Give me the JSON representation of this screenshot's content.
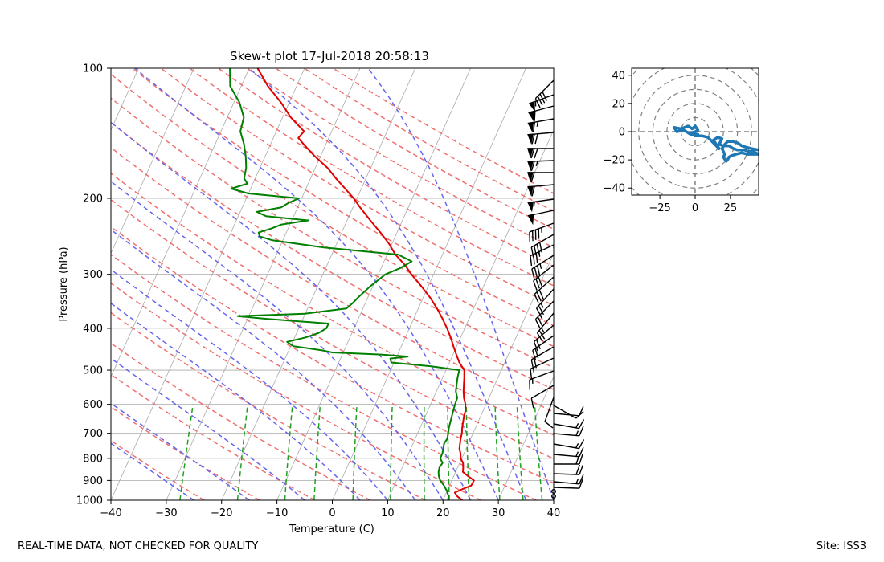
{
  "footer": {
    "left": "REAL-TIME DATA, NOT CHECKED FOR QUALITY",
    "right": "Site: ISS3"
  },
  "colors": {
    "temperature": "#e00000",
    "dewpoint": "#008000",
    "dry_adiabat": "#f07070",
    "moist_adiabat": "#6666ee",
    "mixing_ratio": "#22a022",
    "isotherm": "#aaaaaa",
    "hodograph": "#1f77b4"
  },
  "chart_data": [
    {
      "type": "line",
      "subtype": "skew-t",
      "title": "Skew-t plot 17-Jul-2018 20:58:13",
      "xlabel": "Temperature (C)",
      "ylabel": "Pressure (hPa)",
      "xlim": [
        -40,
        40
      ],
      "ylim": [
        1000,
        100
      ],
      "yscale": "log",
      "x_ticks": [
        "−40",
        "−30",
        "−20",
        "−10",
        "0",
        "10",
        "20",
        "30",
        "40"
      ],
      "x_tick_values": [
        -40,
        -30,
        -20,
        -10,
        0,
        10,
        20,
        30,
        40
      ],
      "y_ticks": [
        100,
        200,
        300,
        400,
        500,
        600,
        700,
        800,
        900,
        1000
      ],
      "grid": true,
      "series": [
        {
          "role": "temperature",
          "points": [
            [
              1000,
              23.5
            ],
            [
              980,
              22.3
            ],
            [
              960,
              21.5
            ],
            [
              940,
              22.8
            ],
            [
              925,
              23.9
            ],
            [
              900,
              24.0
            ],
            [
              880,
              22.6
            ],
            [
              860,
              21.3
            ],
            [
              840,
              21.0
            ],
            [
              820,
              20.6
            ],
            [
              800,
              19.8
            ],
            [
              780,
              19.4
            ],
            [
              760,
              18.8
            ],
            [
              740,
              18.5
            ],
            [
              720,
              18.2
            ],
            [
              700,
              18.0
            ],
            [
              680,
              17.6
            ],
            [
              660,
              17.3
            ],
            [
              640,
              17.0
            ],
            [
              620,
              16.8
            ],
            [
              600,
              16.3
            ],
            [
              580,
              15.5
            ],
            [
              560,
              14.9
            ],
            [
              540,
              14.4
            ],
            [
              520,
              13.9
            ],
            [
              500,
              13.3
            ],
            [
              480,
              11.8
            ],
            [
              460,
              10.6
            ],
            [
              440,
              9.4
            ],
            [
              420,
              8.2
            ],
            [
              400,
              6.8
            ],
            [
              380,
              5.2
            ],
            [
              360,
              3.4
            ],
            [
              340,
              1.3
            ],
            [
              320,
              -1.2
            ],
            [
              300,
              -4.0
            ],
            [
              285,
              -6.0
            ],
            [
              270,
              -8.5
            ],
            [
              255,
              -10.5
            ],
            [
              240,
              -13.0
            ],
            [
              225,
              -15.8
            ],
            [
              210,
              -18.7
            ],
            [
              200,
              -20.6
            ],
            [
              190,
              -22.9
            ],
            [
              180,
              -25.4
            ],
            [
              170,
              -27.8
            ],
            [
              160,
              -31.0
            ],
            [
              150,
              -34.0
            ],
            [
              145,
              -35.5
            ],
            [
              140,
              -35.0
            ],
            [
              130,
              -38.5
            ],
            [
              120,
              -41.5
            ],
            [
              110,
              -45.2
            ],
            [
              100,
              -48.5
            ]
          ]
        },
        {
          "role": "dewpoint",
          "points": [
            [
              1000,
              20.9
            ],
            [
              980,
              20.7
            ],
            [
              950,
              19.9
            ],
            [
              925,
              19.0
            ],
            [
              900,
              17.9
            ],
            [
              880,
              17.3
            ],
            [
              860,
              16.9
            ],
            [
              840,
              16.7
            ],
            [
              820,
              16.9
            ],
            [
              800,
              16.1
            ],
            [
              780,
              16.1
            ],
            [
              760,
              15.9
            ],
            [
              740,
              15.6
            ],
            [
              720,
              15.8
            ],
            [
              700,
              15.5
            ],
            [
              680,
              15.2
            ],
            [
              660,
              15.0
            ],
            [
              640,
              14.8
            ],
            [
              620,
              14.6
            ],
            [
              600,
              14.4
            ],
            [
              580,
              14.3
            ],
            [
              560,
              13.5
            ],
            [
              540,
              13.1
            ],
            [
              520,
              12.7
            ],
            [
              500,
              12.4
            ],
            [
              490,
              7.0
            ],
            [
              480,
              -0.5
            ],
            [
              470,
              -1.0
            ],
            [
              465,
              2.0
            ],
            [
              460,
              -3.0
            ],
            [
              455,
              -12.0
            ],
            [
              450,
              -14.0
            ],
            [
              440,
              -19.5
            ],
            [
              430,
              -21.0
            ],
            [
              420,
              -18.0
            ],
            [
              410,
              -16.0
            ],
            [
              400,
              -15.0
            ],
            [
              390,
              -15.0
            ],
            [
              380,
              -27.0
            ],
            [
              375,
              -32.0
            ],
            [
              370,
              -20.0
            ],
            [
              360,
              -13.0
            ],
            [
              350,
              -12.3
            ],
            [
              340,
              -11.8
            ],
            [
              320,
              -10.5
            ],
            [
              300,
              -8.7
            ],
            [
              290,
              -6.5
            ],
            [
              280,
              -5.0
            ],
            [
              270,
              -8.0
            ],
            [
              260,
              -22.0
            ],
            [
              250,
              -32.0
            ],
            [
              245,
              -34.5
            ],
            [
              240,
              -35.0
            ],
            [
              235,
              -33.0
            ],
            [
              230,
              -31.5
            ],
            [
              225,
              -27.0
            ],
            [
              220,
              -35.0
            ],
            [
              215,
              -37.0
            ],
            [
              210,
              -33.0
            ],
            [
              205,
              -32.0
            ],
            [
              200,
              -30.5
            ],
            [
              195,
              -40.0
            ],
            [
              190,
              -43.5
            ],
            [
              185,
              -41.0
            ],
            [
              180,
              -42.0
            ],
            [
              170,
              -42.5
            ],
            [
              160,
              -43.5
            ],
            [
              150,
              -44.8
            ],
            [
              140,
              -46.5
            ],
            [
              130,
              -47.0
            ],
            [
              120,
              -49.0
            ],
            [
              110,
              -52.0
            ],
            [
              100,
              -53.5
            ]
          ]
        }
      ]
    },
    {
      "type": "line",
      "subtype": "hodograph",
      "xlim": [
        -45,
        45
      ],
      "ylim": [
        -45,
        45
      ],
      "x_ticks": [
        "−25",
        "0",
        "25"
      ],
      "x_tick_values": [
        -25,
        0,
        25
      ],
      "y_ticks": [
        "40",
        "20",
        "0",
        "−20",
        "−40"
      ],
      "y_tick_values": [
        40,
        20,
        0,
        -20,
        -40
      ],
      "rings": [
        10,
        20,
        30,
        40,
        50,
        60
      ],
      "points": [
        [
          -3,
          -2
        ],
        [
          -8,
          1
        ],
        [
          -13,
          0
        ],
        [
          -15,
          3
        ],
        [
          -10,
          2
        ],
        [
          -5,
          4
        ],
        [
          -2,
          2
        ],
        [
          0,
          4
        ],
        [
          2,
          1
        ],
        [
          0,
          0
        ],
        [
          -3,
          -1
        ],
        [
          0,
          -3
        ],
        [
          2,
          -2
        ],
        [
          -2,
          -1
        ],
        [
          1,
          -3
        ],
        [
          5,
          -3
        ],
        [
          9,
          -4
        ],
        [
          13,
          -8
        ],
        [
          15,
          -10
        ],
        [
          17,
          -12
        ],
        [
          13,
          -6
        ],
        [
          16,
          -4
        ],
        [
          19,
          -5
        ],
        [
          17,
          -9
        ],
        [
          20,
          -10
        ],
        [
          24,
          -10
        ],
        [
          27,
          -12
        ],
        [
          30,
          -13
        ],
        [
          35,
          -13
        ],
        [
          38,
          -14
        ],
        [
          41,
          -14
        ],
        [
          45,
          -16
        ],
        [
          37,
          -16
        ],
        [
          33,
          -15
        ],
        [
          29,
          -16
        ],
        [
          26,
          -17
        ],
        [
          24,
          -18
        ],
        [
          23,
          -20
        ],
        [
          22,
          -21
        ],
        [
          20,
          -18
        ],
        [
          21,
          -16
        ],
        [
          19,
          -12
        ],
        [
          21,
          -9
        ],
        [
          23,
          -7
        ],
        [
          27,
          -7
        ],
        [
          30,
          -8
        ],
        [
          33,
          -10
        ],
        [
          36,
          -11
        ],
        [
          40,
          -12
        ],
        [
          45,
          -13
        ]
      ]
    }
  ]
}
